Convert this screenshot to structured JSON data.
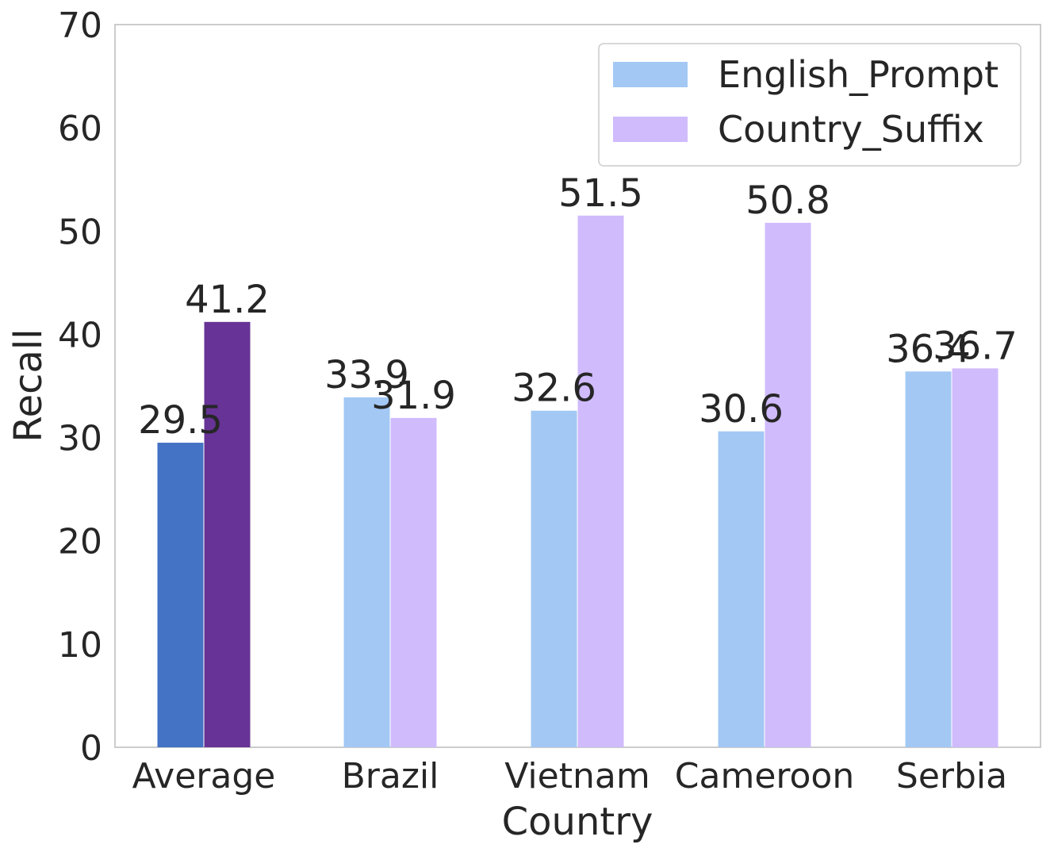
{
  "chart_data": {
    "type": "bar",
    "xlabel": "Country",
    "ylabel": "Recall",
    "ylim": [
      0,
      70
    ],
    "yticks": [
      0,
      10,
      20,
      30,
      40,
      50,
      60,
      70
    ],
    "grid": false,
    "legend_position": "top-right",
    "categories": [
      "Average",
      "Brazil",
      "Vietnam",
      "Cameroon",
      "Serbia"
    ],
    "series": [
      {
        "name": "English_Prompt",
        "values": [
          29.5,
          33.9,
          32.6,
          30.6,
          36.4
        ],
        "labels": [
          "29.5",
          "33.9",
          "32.6",
          "30.6",
          "36.4"
        ],
        "color": "#a3c8f4",
        "highlight_color": "#4472c4"
      },
      {
        "name": "Country_Suffix",
        "values": [
          41.2,
          31.9,
          51.5,
          50.8,
          36.7
        ],
        "labels": [
          "41.2",
          "31.9",
          "51.5",
          "50.8",
          "36.7"
        ],
        "color": "#d0bbfd",
        "highlight_color": "#673396"
      }
    ],
    "highlight_category": "Average"
  }
}
